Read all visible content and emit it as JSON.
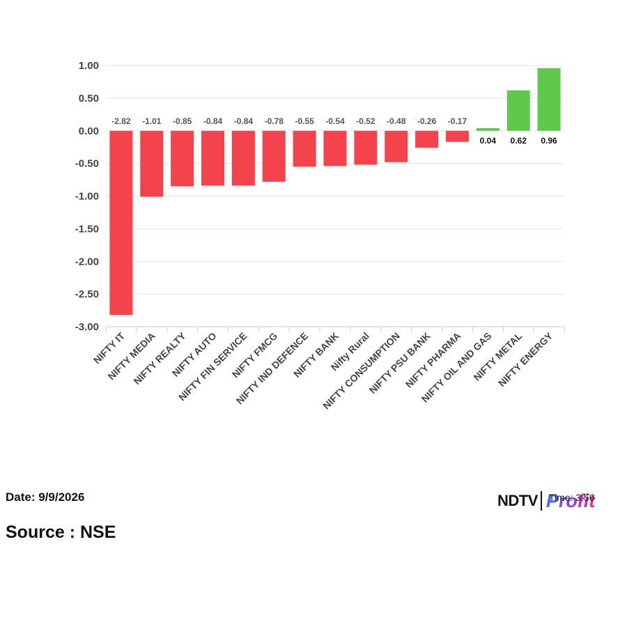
{
  "chart_data": {
    "type": "bar",
    "categories": [
      "NIFTY IT",
      "NIFTY MEDIA",
      "NIFTY REALTY",
      "NIFTY AUTO",
      "NIFTY FIN SERVICE",
      "NIFTY FMCG",
      "NIFTY IND DEFENCE",
      "NIFTY BANK",
      "Nifty Rural",
      "NIFTY CONSUMPTION",
      "NIFTY PSU BANK",
      "NIFTY PHARMA",
      "NIFTY OIL AND GAS",
      "NIFTY METAL",
      "NIFTY ENERGY"
    ],
    "values": [
      -2.82,
      -1.01,
      -0.85,
      -0.84,
      -0.84,
      -0.78,
      -0.55,
      -0.54,
      -0.52,
      -0.48,
      -0.26,
      -0.17,
      0.04,
      0.62,
      0.96
    ],
    "value_labels": [
      "-2.82",
      "-1.01",
      "-0.85",
      "-0.84",
      "-0.84",
      "-0.78",
      "-0.55",
      "-0.54",
      "-0.52",
      "-0.48",
      "-0.26",
      "-0.17",
      "0.04",
      "0.62",
      "0.96"
    ],
    "ylim": [
      -3.0,
      1.0
    ],
    "yticks": [
      1.0,
      0.5,
      0.0,
      -0.5,
      -1.0,
      -1.5,
      -2.0,
      -2.5,
      -3.0
    ],
    "ytick_labels": [
      "1.00",
      "0.50",
      "0.00",
      "-0.50",
      "-1.00",
      "-1.50",
      "-2.00",
      "-2.50",
      "-3.00"
    ],
    "grid": true,
    "colors": {
      "negative": "#f3444d",
      "positive": "#5ec94a",
      "grid": "#e3e3e3",
      "negative_label": "#555555",
      "positive_label": "#111111"
    }
  },
  "footer": {
    "date": "Date: 9/9/2026",
    "source": "Source : NSE"
  },
  "logo": {
    "ndtv": "NDTV",
    "profit": "Profit",
    "time": "Time: 3:56"
  }
}
